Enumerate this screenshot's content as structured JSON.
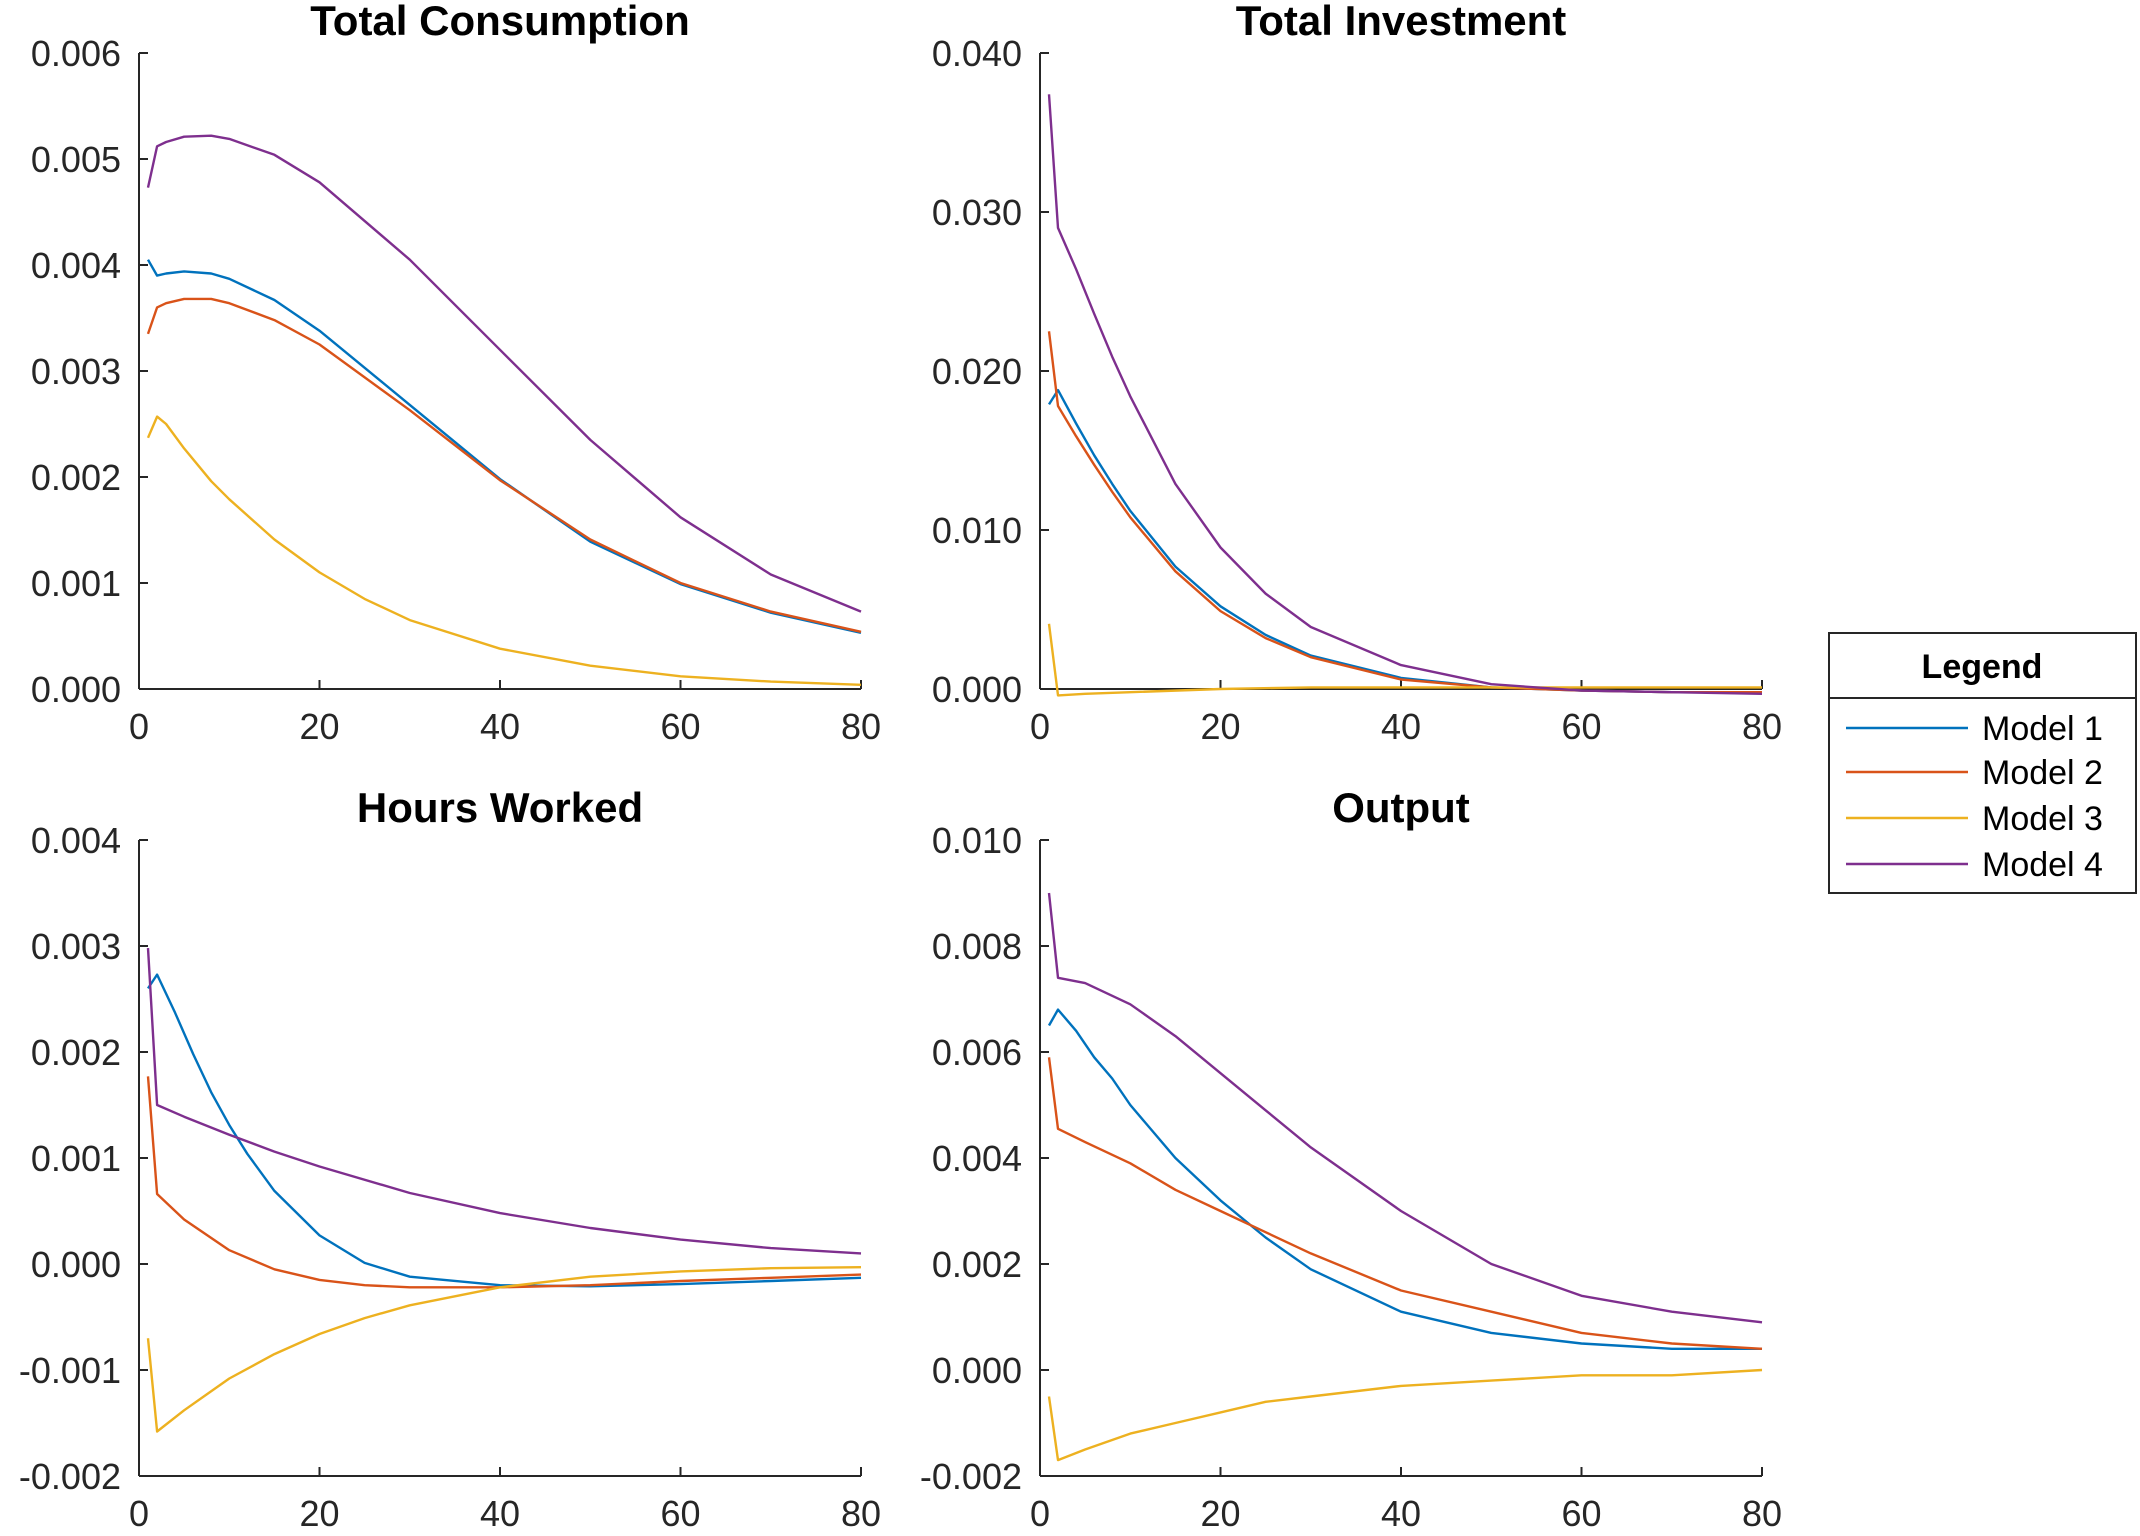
{
  "legend": {
    "title": "Legend",
    "entries": [
      "Model 1",
      "Model 2",
      "Model 3",
      "Model 4"
    ],
    "colors": [
      "#0072BD",
      "#D95319",
      "#EDB120",
      "#7E2F8E"
    ]
  },
  "chart_data": [
    {
      "type": "line",
      "title": "Total Consumption",
      "xlabel": "",
      "ylabel": "",
      "xlim": [
        0,
        80
      ],
      "ylim": [
        0,
        0.006
      ],
      "xticks": [
        "0",
        "20",
        "40",
        "60",
        "80"
      ],
      "yticks": [
        "0.000",
        "0.001",
        "0.002",
        "0.003",
        "0.004",
        "0.005",
        "0.006"
      ],
      "grid": false,
      "series": [
        {
          "name": "Model 1",
          "x": [
            1,
            2,
            3,
            5,
            8,
            10,
            15,
            20,
            30,
            40,
            50,
            60,
            70,
            80
          ],
          "y": [
            0.00405,
            0.0039,
            0.00392,
            0.00394,
            0.00392,
            0.00387,
            0.00367,
            0.00338,
            0.00268,
            0.00198,
            0.00139,
            0.00099,
            0.00072,
            0.00053
          ]
        },
        {
          "name": "Model 2",
          "x": [
            1,
            2,
            3,
            5,
            8,
            10,
            15,
            20,
            30,
            40,
            50,
            60,
            70,
            80
          ],
          "y": [
            0.00335,
            0.0036,
            0.00364,
            0.00368,
            0.00368,
            0.00364,
            0.00348,
            0.00325,
            0.00263,
            0.00197,
            0.00141,
            0.001,
            0.00073,
            0.00054
          ]
        },
        {
          "name": "Model 3",
          "x": [
            1,
            2,
            3,
            5,
            8,
            10,
            15,
            20,
            25,
            30,
            40,
            50,
            60,
            70,
            80
          ],
          "y": [
            0.00237,
            0.00257,
            0.0025,
            0.00227,
            0.00196,
            0.00179,
            0.00141,
            0.0011,
            0.00085,
            0.00065,
            0.00038,
            0.00022,
            0.00012,
            7e-05,
            4e-05
          ]
        },
        {
          "name": "Model 4",
          "x": [
            1,
            2,
            3,
            5,
            8,
            10,
            15,
            20,
            30,
            40,
            50,
            60,
            70,
            80
          ],
          "y": [
            0.00473,
            0.00512,
            0.00516,
            0.00521,
            0.00522,
            0.00519,
            0.00504,
            0.00478,
            0.00405,
            0.0032,
            0.00235,
            0.00162,
            0.00108,
            0.00073
          ]
        }
      ]
    },
    {
      "type": "line",
      "title": "Total Investment",
      "xlabel": "",
      "ylabel": "",
      "xlim": [
        0,
        80
      ],
      "ylim": [
        0,
        0.04
      ],
      "xticks": [
        "0",
        "20",
        "40",
        "60",
        "80"
      ],
      "yticks": [
        "0.000",
        "0.010",
        "0.020",
        "0.030",
        "0.040"
      ],
      "grid": false,
      "series": [
        {
          "name": "Model 1",
          "x": [
            1,
            2,
            4,
            6,
            8,
            10,
            15,
            20,
            25,
            30,
            40,
            50,
            60,
            70,
            80
          ],
          "y": [
            0.0179,
            0.0188,
            0.0167,
            0.0147,
            0.0129,
            0.0112,
            0.0077,
            0.0052,
            0.0034,
            0.0021,
            0.0007,
            0.0001,
            -0.0001,
            -0.0002,
            -0.0002
          ]
        },
        {
          "name": "Model 2",
          "x": [
            1,
            2,
            4,
            6,
            8,
            10,
            15,
            20,
            25,
            30,
            40,
            50,
            60,
            70,
            80
          ],
          "y": [
            0.0225,
            0.0178,
            0.0159,
            0.0141,
            0.0124,
            0.0108,
            0.0074,
            0.0049,
            0.0032,
            0.002,
            0.0006,
            0.0001,
            -0.0001,
            -0.0002,
            -0.0002
          ]
        },
        {
          "name": "Model 3",
          "x": [
            1,
            2,
            5,
            10,
            20,
            30,
            40,
            50,
            60,
            70,
            80
          ],
          "y": [
            0.0041,
            -0.0004,
            -0.0003,
            -0.0002,
            0.0,
            0.0001,
            0.0001,
            0.0001,
            0.0001,
            0.0001,
            0.0001
          ]
        },
        {
          "name": "Model 4",
          "x": [
            1,
            2,
            4,
            6,
            8,
            10,
            15,
            20,
            25,
            30,
            40,
            50,
            60,
            70,
            80
          ],
          "y": [
            0.0374,
            0.029,
            0.0264,
            0.0236,
            0.0209,
            0.0184,
            0.0129,
            0.0089,
            0.006,
            0.0039,
            0.0015,
            0.0003,
            -0.0001,
            -0.0002,
            -0.0003
          ]
        }
      ]
    },
    {
      "type": "line",
      "title": "Hours Worked",
      "xlabel": "",
      "ylabel": "",
      "xlim": [
        0,
        80
      ],
      "ylim": [
        -0.002,
        0.004
      ],
      "xticks": [
        "0",
        "20",
        "40",
        "60",
        "80"
      ],
      "yticks": [
        "-0.002",
        "-0.001",
        "0.000",
        "0.001",
        "0.002",
        "0.003",
        "0.004"
      ],
      "grid": false,
      "series": [
        {
          "name": "Model 1",
          "x": [
            1,
            2,
            4,
            6,
            8,
            10,
            12,
            15,
            20,
            25,
            30,
            40,
            50,
            60,
            70,
            80
          ],
          "y": [
            0.0026,
            0.00273,
            0.00237,
            0.00198,
            0.00162,
            0.00131,
            0.00104,
            0.00069,
            0.00027,
            1e-05,
            -0.00012,
            -0.0002,
            -0.00021,
            -0.00019,
            -0.00016,
            -0.00013
          ]
        },
        {
          "name": "Model 2",
          "x": [
            1,
            2,
            5,
            10,
            15,
            20,
            25,
            30,
            40,
            50,
            60,
            70,
            80
          ],
          "y": [
            0.00177,
            0.00066,
            0.00042,
            0.00013,
            -5e-05,
            -0.00015,
            -0.0002,
            -0.00022,
            -0.00022,
            -0.0002,
            -0.00016,
            -0.00013,
            -0.0001
          ]
        },
        {
          "name": "Model 3",
          "x": [
            1,
            2,
            5,
            10,
            15,
            20,
            25,
            30,
            40,
            50,
            60,
            70,
            80
          ],
          "y": [
            -0.0007,
            -0.00158,
            -0.00138,
            -0.00108,
            -0.00085,
            -0.00066,
            -0.00051,
            -0.00039,
            -0.00022,
            -0.00012,
            -7e-05,
            -4e-05,
            -3e-05
          ]
        },
        {
          "name": "Model 4",
          "x": [
            1,
            2,
            5,
            10,
            15,
            20,
            30,
            40,
            50,
            60,
            70,
            80
          ],
          "y": [
            0.00298,
            0.0015,
            0.00139,
            0.00122,
            0.00106,
            0.00092,
            0.00067,
            0.00048,
            0.00034,
            0.00023,
            0.00015,
            0.0001
          ]
        }
      ]
    },
    {
      "type": "line",
      "title": "Output",
      "xlabel": "",
      "ylabel": "",
      "xlim": [
        0,
        80
      ],
      "ylim": [
        -0.002,
        0.01
      ],
      "xticks": [
        "0",
        "20",
        "40",
        "60",
        "80"
      ],
      "yticks": [
        "-0.002",
        "0.000",
        "0.002",
        "0.004",
        "0.006",
        "0.008",
        "0.010"
      ],
      "grid": false,
      "series": [
        {
          "name": "Model 1",
          "x": [
            1,
            2,
            4,
            6,
            8,
            10,
            15,
            20,
            25,
            30,
            40,
            50,
            60,
            70,
            80
          ],
          "y": [
            0.0065,
            0.0068,
            0.0064,
            0.0059,
            0.0055,
            0.005,
            0.004,
            0.0032,
            0.0025,
            0.0019,
            0.0011,
            0.0007,
            0.0005,
            0.0004,
            0.0004
          ]
        },
        {
          "name": "Model 2",
          "x": [
            1,
            2,
            5,
            10,
            15,
            20,
            25,
            30,
            40,
            50,
            60,
            70,
            80
          ],
          "y": [
            0.0059,
            0.00455,
            0.0043,
            0.0039,
            0.0034,
            0.003,
            0.0026,
            0.0022,
            0.0015,
            0.0011,
            0.0007,
            0.0005,
            0.0004
          ]
        },
        {
          "name": "Model 3",
          "x": [
            1,
            2,
            5,
            10,
            15,
            20,
            25,
            30,
            40,
            50,
            60,
            70,
            80
          ],
          "y": [
            -0.0005,
            -0.0017,
            -0.0015,
            -0.0012,
            -0.001,
            -0.0008,
            -0.0006,
            -0.0005,
            -0.0003,
            -0.0002,
            -0.0001,
            -0.0001,
            0.0
          ]
        },
        {
          "name": "Model 4",
          "x": [
            1,
            2,
            5,
            10,
            15,
            20,
            25,
            30,
            40,
            50,
            60,
            70,
            80
          ],
          "y": [
            0.009,
            0.0074,
            0.0073,
            0.0069,
            0.0063,
            0.0056,
            0.0049,
            0.0042,
            0.003,
            0.002,
            0.0014,
            0.0011,
            0.0009
          ]
        }
      ]
    }
  ]
}
